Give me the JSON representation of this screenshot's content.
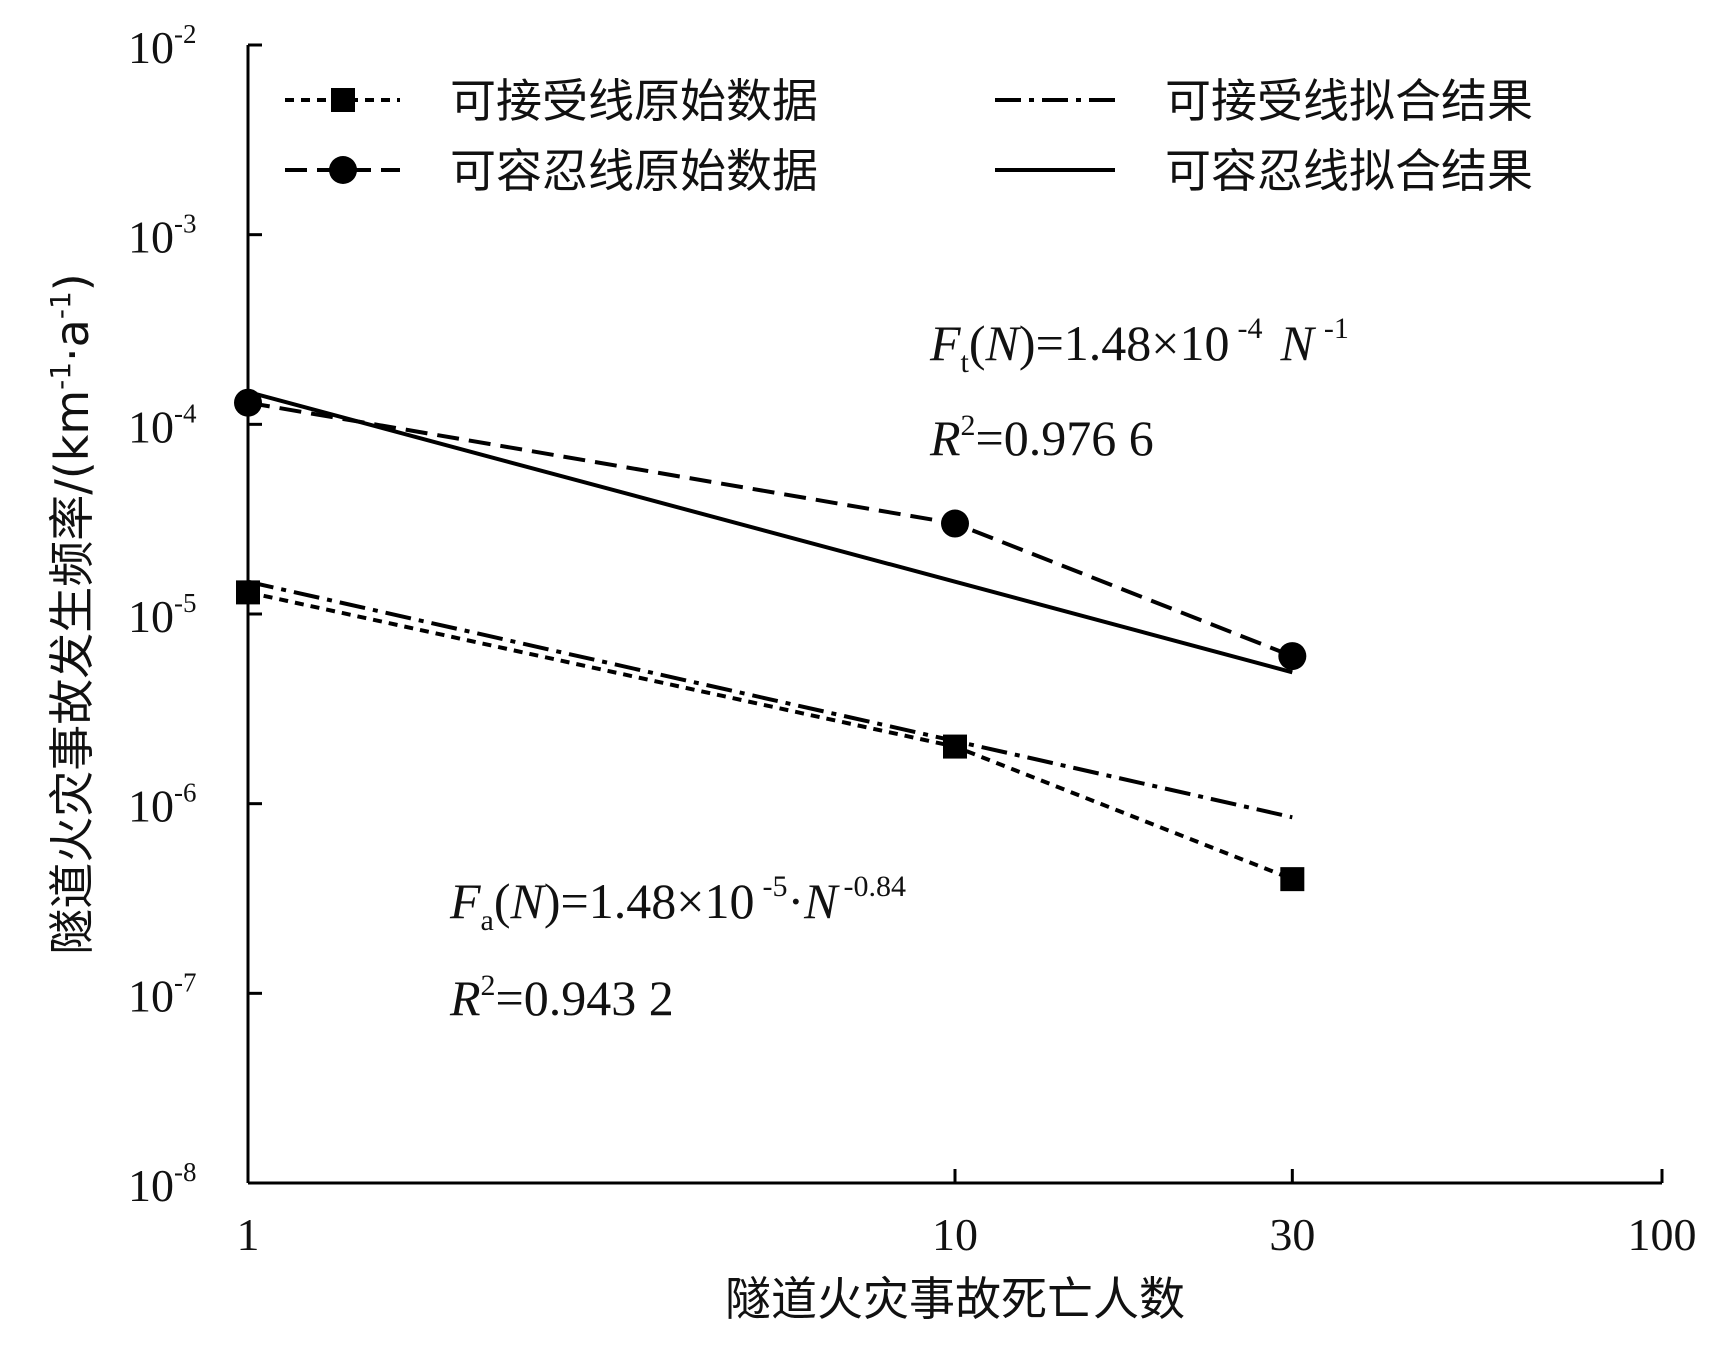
{
  "chart_data": {
    "type": "line",
    "x_scale": "log",
    "y_scale": "log",
    "xlim": [
      1,
      100
    ],
    "ylim": [
      1e-08,
      0.01
    ],
    "x_ticks": [
      1,
      10,
      30,
      100
    ],
    "x_tick_labels": [
      "1",
      "10",
      "30",
      "100"
    ],
    "y_ticks": [
      1e-08,
      1e-07,
      1e-06,
      1e-05,
      0.0001,
      0.001,
      0.01
    ],
    "y_tick_labels": [
      {
        "base": "10",
        "exp": "-8"
      },
      {
        "base": "10",
        "exp": "-7"
      },
      {
        "base": "10",
        "exp": "-6"
      },
      {
        "base": "10",
        "exp": "-5"
      },
      {
        "base": "10",
        "exp": "-4"
      },
      {
        "base": "10",
        "exp": "-3"
      },
      {
        "base": "10",
        "exp": "-2"
      }
    ],
    "xlabel": "隧道火灾事故死亡人数",
    "ylabel": "隧道火灾事故发生频率/(km",
    "ylabel_exp1": "-1",
    "ylabel_mid": "·a",
    "ylabel_exp2": "-1",
    "ylabel_end": ")",
    "legend_position": "top",
    "series": [
      {
        "name": "可接受线原始数据",
        "style": "short-dash",
        "marker": "square",
        "x": [
          1,
          10,
          30
        ],
        "y": [
          1.3e-05,
          2e-06,
          4e-07
        ]
      },
      {
        "name": "可容忍线原始数据",
        "style": "dash",
        "marker": "circle",
        "x": [
          1,
          10,
          30
        ],
        "y": [
          0.00013,
          3e-05,
          6e-06
        ]
      },
      {
        "name": "可接受线拟合结果",
        "style": "dash-dot",
        "marker": "none",
        "x": [
          1,
          10,
          30
        ],
        "y": [
          1.48e-05,
          2.14e-06,
          8.47e-07
        ]
      },
      {
        "name": "可容忍线拟合结果",
        "style": "solid",
        "marker": "none",
        "x": [
          1,
          10,
          30
        ],
        "y": [
          0.000148,
          1.48e-05,
          4.93e-06
        ]
      }
    ],
    "annotations": {
      "tolerable": {
        "F": "F",
        "sub": "t",
        "open": "(",
        "N": "N",
        "close": ")",
        "mid": "=1.48×10",
        "exp1": "-4",
        "N2": "N",
        "exp2": "-1",
        "R": "R",
        "R_exp": "2",
        "R_val": "=0.976 6"
      },
      "acceptable": {
        "F": "F",
        "sub": "a",
        "open": "(",
        "N": "N",
        "close": ")",
        "mid": "=1.48×10",
        "exp1": "-5",
        "dot": "·",
        "N2": "N",
        "exp2": "-0.84",
        "R": "R",
        "R_exp": "2",
        "R_val": "=0.943 2"
      }
    }
  }
}
